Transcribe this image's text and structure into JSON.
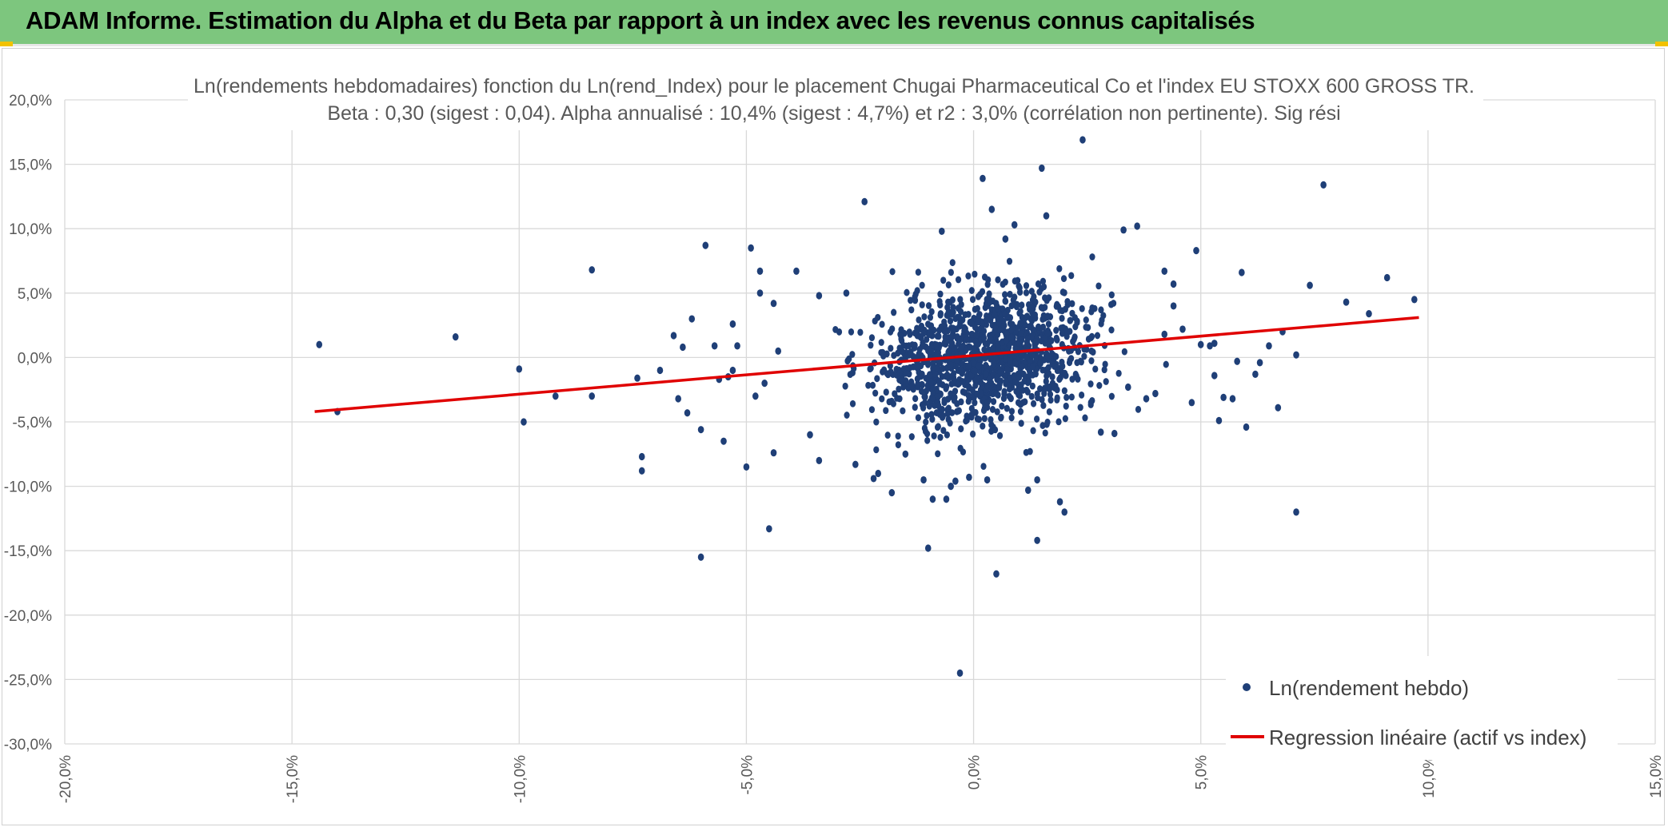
{
  "header": {
    "title": "ADAM Informe. Estimation du Alpha et du Beta par rapport à un index avec les revenus connus capitalisés",
    "background": "#7dc67e"
  },
  "chart_data": {
    "type": "scatter",
    "title": "Ln(rendements hebdomadaires) fonction du Ln(rend_Index) pour le placement Chugai Pharmaceutical Co  et l'index EU STOXX 600 GROSS TR.",
    "subtitle": "Beta : 0,30 (sigest : 0,04). Alpha annualisé : 10,4% (sigest : 4,7%) et r2 : 3,0% (corrélation non pertinente). Sig rési",
    "xlabel": "",
    "ylabel": "",
    "xlim": [
      -0.2,
      0.15
    ],
    "ylim": [
      -0.3,
      0.2
    ],
    "x_ticks": [
      -0.2,
      -0.15,
      -0.1,
      -0.05,
      0.0,
      0.05,
      0.1,
      0.15
    ],
    "y_ticks": [
      0.2,
      0.15,
      0.1,
      0.05,
      0.0,
      -0.05,
      -0.1,
      -0.15,
      -0.2,
      -0.25,
      -0.3
    ],
    "x_tick_labels": [
      "-20,0%",
      "-15,0%",
      "-10,0%",
      "-5,0%",
      "0,0%",
      "5,0%",
      "10,0%",
      "15,0%"
    ],
    "y_tick_labels": [
      "20,0%",
      "15,0%",
      "10,0%",
      "5,0%",
      "0,0%",
      "-5,0%",
      "-10,0%",
      "-15,0%",
      "-20,0%",
      "-25,0%",
      "-30,0%"
    ],
    "grid": true,
    "legend_position": "bottom-right",
    "series": [
      {
        "name": "Ln(rendement hebdo)",
        "kind": "scatter",
        "color": "#1f3f77",
        "points": [
          [
            -0.144,
            0.01
          ],
          [
            -0.14,
            -0.042
          ],
          [
            -0.114,
            0.016
          ],
          [
            -0.1,
            -0.009
          ],
          [
            -0.099,
            -0.05
          ],
          [
            -0.092,
            -0.03
          ],
          [
            -0.084,
            0.068
          ],
          [
            -0.084,
            -0.03
          ],
          [
            -0.074,
            -0.016
          ],
          [
            -0.073,
            -0.077
          ],
          [
            -0.073,
            -0.088
          ],
          [
            -0.069,
            -0.01
          ],
          [
            -0.066,
            0.017
          ],
          [
            -0.065,
            -0.032
          ],
          [
            -0.064,
            0.008
          ],
          [
            -0.063,
            -0.043
          ],
          [
            -0.062,
            0.03
          ],
          [
            -0.06,
            -0.056
          ],
          [
            -0.06,
            -0.155
          ],
          [
            -0.059,
            0.087
          ],
          [
            -0.057,
            0.009
          ],
          [
            -0.056,
            -0.017
          ],
          [
            -0.055,
            -0.065
          ],
          [
            -0.054,
            -0.015
          ],
          [
            -0.053,
            0.026
          ],
          [
            -0.053,
            -0.01
          ],
          [
            -0.052,
            0.009
          ],
          [
            -0.05,
            -0.085
          ],
          [
            -0.049,
            0.085
          ],
          [
            -0.048,
            -0.03
          ],
          [
            -0.047,
            0.067
          ],
          [
            -0.047,
            0.05
          ],
          [
            -0.046,
            -0.02
          ],
          [
            -0.045,
            -0.133
          ],
          [
            -0.044,
            0.042
          ],
          [
            -0.044,
            -0.074
          ],
          [
            -0.043,
            0.005
          ],
          [
            -0.039,
            0.067
          ],
          [
            -0.036,
            -0.06
          ],
          [
            -0.034,
            0.048
          ],
          [
            -0.034,
            -0.08
          ],
          [
            -0.028,
            0.05
          ],
          [
            -0.026,
            -0.083
          ],
          [
            -0.024,
            0.121
          ],
          [
            -0.022,
            -0.094
          ],
          [
            -0.021,
            -0.09
          ],
          [
            -0.018,
            -0.105
          ],
          [
            -0.015,
            -0.075
          ],
          [
            -0.011,
            -0.095
          ],
          [
            -0.01,
            -0.148
          ],
          [
            -0.009,
            -0.11
          ],
          [
            -0.007,
            0.098
          ],
          [
            -0.006,
            -0.11
          ],
          [
            -0.005,
            -0.1
          ],
          [
            -0.004,
            -0.096
          ],
          [
            -0.003,
            -0.245
          ],
          [
            -0.001,
            -0.093
          ],
          [
            0.002,
            0.139
          ],
          [
            0.003,
            -0.095
          ],
          [
            0.004,
            0.115
          ],
          [
            0.005,
            -0.168
          ],
          [
            0.007,
            0.092
          ],
          [
            0.009,
            0.103
          ],
          [
            0.012,
            -0.103
          ],
          [
            0.014,
            -0.142
          ],
          [
            0.014,
            -0.095
          ],
          [
            0.015,
            0.147
          ],
          [
            0.016,
            0.11
          ],
          [
            0.019,
            -0.112
          ],
          [
            0.02,
            -0.12
          ],
          [
            0.024,
            0.169
          ],
          [
            0.028,
            -0.058
          ],
          [
            0.031,
            -0.059
          ],
          [
            0.033,
            0.099
          ],
          [
            0.034,
            -0.023
          ],
          [
            0.036,
            0.102
          ],
          [
            0.038,
            -0.032
          ],
          [
            0.04,
            -0.028
          ],
          [
            0.042,
            0.018
          ],
          [
            0.042,
            0.067
          ],
          [
            0.044,
            0.057
          ],
          [
            0.044,
            0.04
          ],
          [
            0.046,
            0.022
          ],
          [
            0.048,
            -0.035
          ],
          [
            0.049,
            0.083
          ],
          [
            0.05,
            0.01
          ],
          [
            0.052,
            0.009
          ],
          [
            0.053,
            -0.014
          ],
          [
            0.053,
            0.011
          ],
          [
            0.054,
            -0.049
          ],
          [
            0.055,
            -0.031
          ],
          [
            0.057,
            -0.032
          ],
          [
            0.058,
            -0.003
          ],
          [
            0.059,
            0.066
          ],
          [
            0.06,
            -0.054
          ],
          [
            0.062,
            -0.013
          ],
          [
            0.063,
            -0.004
          ],
          [
            0.065,
            0.009
          ],
          [
            0.067,
            -0.039
          ],
          [
            0.068,
            0.02
          ],
          [
            0.071,
            0.002
          ],
          [
            0.071,
            -0.12
          ],
          [
            0.074,
            0.056
          ],
          [
            0.077,
            0.134
          ],
          [
            0.082,
            0.043
          ],
          [
            0.087,
            0.034
          ],
          [
            0.091,
            0.062
          ],
          [
            0.097,
            0.045
          ]
        ]
      },
      {
        "name": "Regression linéaire (actif vs index)",
        "kind": "line",
        "color": "#e00000",
        "points": [
          [
            -0.145,
            -0.042
          ],
          [
            0.098,
            0.031
          ]
        ]
      }
    ]
  },
  "legend": {
    "scatter_label": "Ln(rendement hebdo)",
    "line_label": "Regression linéaire (actif vs index)"
  }
}
